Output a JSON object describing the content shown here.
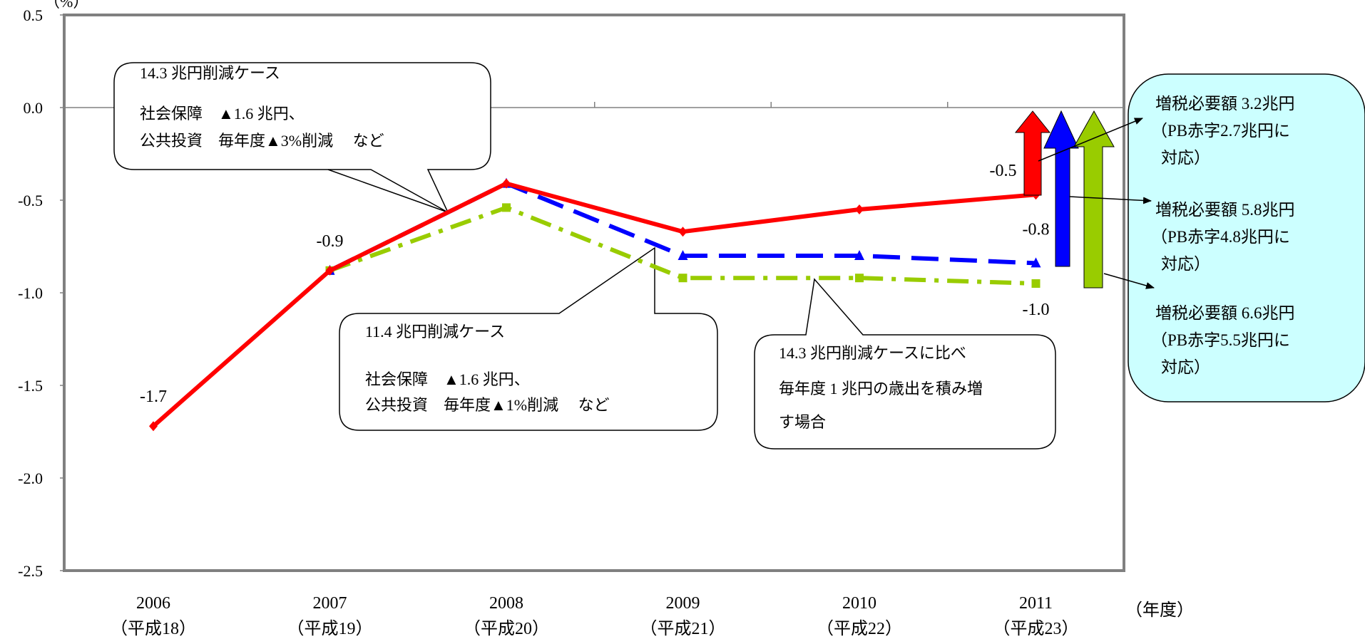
{
  "chart_data": {
    "type": "line",
    "unit_label": "（%）",
    "ylim": [
      -2.5,
      0.5
    ],
    "y_ticks": [
      "0.5",
      "0.0",
      "-0.5",
      "-1.0",
      "-1.5",
      "-2.0",
      "-2.5"
    ],
    "y_tick_values": [
      0.5,
      0.0,
      -0.5,
      -1.0,
      -1.5,
      -2.0,
      -2.5
    ],
    "categories": [
      "2006",
      "2007",
      "2008",
      "2009",
      "2010",
      "2011"
    ],
    "category_sublabels": [
      "（平成18）",
      "（平成19）",
      "（平成20）",
      "（平成21）",
      "（平成22）",
      "（平成23）"
    ],
    "xlabel": "（年度）",
    "series": [
      {
        "values": [
          -1.72,
          -0.88,
          -0.41,
          -0.67,
          -0.55,
          -0.47
        ],
        "color": "#ff0000",
        "dash": "solid",
        "marker": "diamond"
      },
      {
        "values": [
          null,
          -0.88,
          -0.41,
          -0.8,
          -0.8,
          -0.84
        ],
        "color": "#0000ff",
        "dash": "dash",
        "marker": "triangle"
      },
      {
        "values": [
          null,
          -0.88,
          -0.54,
          -0.92,
          -0.92,
          -0.95
        ],
        "color": "#99cc00",
        "dash": "dashdot",
        "marker": "square"
      }
    ],
    "data_labels": [
      {
        "text": "-1.7",
        "x_index": 0,
        "value": -1.72
      },
      {
        "text": "-0.9",
        "x_index": 1,
        "value": -0.88
      },
      {
        "text": "-0.5",
        "x_index": 5,
        "value": -0.47
      },
      {
        "text": "-0.8",
        "x_index": 5,
        "value": -0.84
      },
      {
        "text": "-1.0",
        "x_index": 5,
        "value": -0.95
      }
    ],
    "arrows_colors": [
      "#ff0000",
      "#0000ff",
      "#99cc00"
    ],
    "grid": false
  },
  "annotations": {
    "callout1": {
      "line1": "14.3 兆円削減ケース",
      "line2": "社会保障　▲1.6 兆円、",
      "line3": "公共投資　毎年度▲3%削減　 など"
    },
    "callout2": {
      "line1": "11.4 兆円削減ケース",
      "line2": "社会保障　▲1.6 兆円、",
      "line3": "公共投資　毎年度▲1%削減　 など"
    },
    "callout3": {
      "line1": "14.3 兆円削減ケースに比べ",
      "line2": "毎年度 1 兆円の歳出を積み増",
      "line3": "す場合"
    }
  },
  "side_box": {
    "fill": "#ccffff",
    "items": [
      {
        "line1": "増税必要額 3.2兆円",
        "line2": "（PB赤字2.7兆円に",
        "line3": "対応）"
      },
      {
        "line1": "増税必要額 5.8兆円",
        "line2": "（PB赤字4.8兆円に",
        "line3": "対応）"
      },
      {
        "line1": "増税必要額 6.6兆円",
        "line2": "（PB赤字5.5兆円に",
        "line3": "対応）"
      }
    ]
  }
}
